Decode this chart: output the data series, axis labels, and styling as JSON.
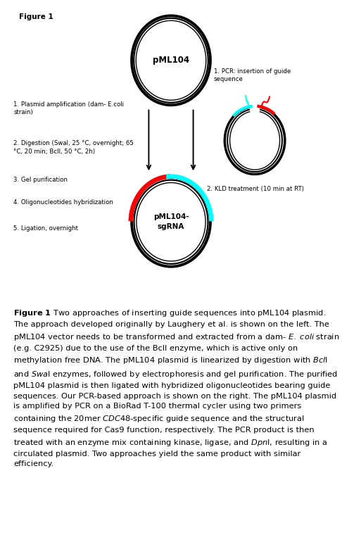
{
  "figure_label": "Figure 1",
  "bg_color": "#ffffff",
  "border_color": "#c8a0b0",
  "top_plasmid_label": "pML104",
  "bottom_plasmid_label": "pML104-\nsgRNA",
  "left_steps": [
    "1. Plasmid amplification (dam- E.coli\nstrain)",
    "2. Digestion (Swal, 25 °C, overnight; 65\n°C, 20 min; BclI, 50 °C, 2h)",
    "3. Gel purification",
    "4. Oligonucleotides hybridization",
    "5. Ligation, overnight"
  ],
  "right_step1": "1. PCR: insertion of guide\nsequence",
  "right_step2": "2. KLD treatment (10 min at RT)"
}
